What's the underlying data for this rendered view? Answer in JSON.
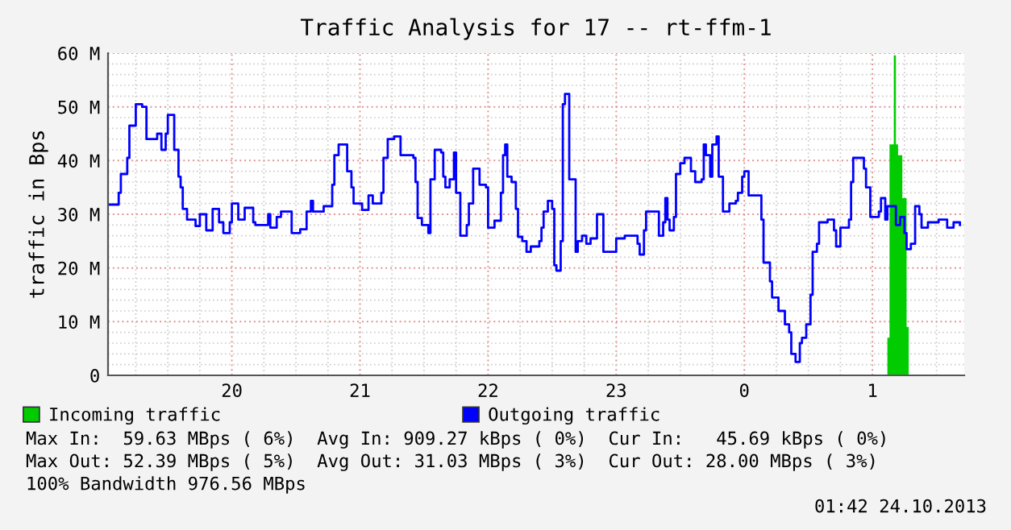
{
  "chart_data": {
    "type": "step",
    "title": "Traffic Analysis for 17 -- rt-ffm-1",
    "ylabel": "traffic in Bps",
    "xlim": [
      "2013-10-23T19:02",
      "2013-10-24T01:43"
    ],
    "xticks": [
      {
        "value": "2013-10-23T20:00",
        "label": "20"
      },
      {
        "value": "2013-10-23T21:00",
        "label": "21"
      },
      {
        "value": "2013-10-23T22:00",
        "label": "22"
      },
      {
        "value": "2013-10-23T23:00",
        "label": "23"
      },
      {
        "value": "2013-10-24T00:00",
        "label": "0"
      },
      {
        "value": "2013-10-24T01:00",
        "label": "1"
      }
    ],
    "ylim": [
      0,
      60
    ],
    "yticks": [
      {
        "value": 0,
        "label": "0"
      },
      {
        "value": 10,
        "label": "10 M"
      },
      {
        "value": 20,
        "label": "20 M"
      },
      {
        "value": 30,
        "label": "30 M"
      },
      {
        "value": 40,
        "label": "40 M"
      },
      {
        "value": 50,
        "label": "50 M"
      },
      {
        "value": 60,
        "label": "60 M"
      }
    ],
    "grid": true,
    "legend": "bottom",
    "series": [
      {
        "name": "Incoming traffic",
        "type": "area",
        "color": "#00cc00",
        "x": [
          "2013-10-23T19:02",
          "2013-10-24T01:06",
          "2013-10-24T01:07",
          "2013-10-24T01:08",
          "2013-10-24T01:10",
          "2013-10-24T01:11",
          "2013-10-24T01:12",
          "2013-10-24T01:14",
          "2013-10-24T01:16",
          "2013-10-24T01:17",
          "2013-10-24T01:41"
        ],
        "values": [
          0,
          0,
          7,
          43,
          59.6,
          43,
          41,
          33,
          9,
          0,
          0
        ]
      },
      {
        "name": "Outgoing traffic",
        "color": "#0000ff",
        "x": [
          "2013-10-23T19:02",
          "2013-10-23T19:07",
          "2013-10-23T19:08",
          "2013-10-23T19:11",
          "2013-10-23T19:12",
          "2013-10-23T19:15",
          "2013-10-23T19:18",
          "2013-10-23T19:20",
          "2013-10-23T19:24",
          "2013-10-23T19:25",
          "2013-10-23T19:27",
          "2013-10-23T19:29",
          "2013-10-23T19:30",
          "2013-10-23T19:33",
          "2013-10-23T19:35",
          "2013-10-23T19:36",
          "2013-10-23T19:37",
          "2013-10-23T19:39",
          "2013-10-23T19:43",
          "2013-10-23T19:45",
          "2013-10-23T19:48",
          "2013-10-23T19:51",
          "2013-10-23T19:54",
          "2013-10-23T19:56",
          "2013-10-23T19:59",
          "2013-10-23T20:00",
          "2013-10-23T20:03",
          "2013-10-23T20:06",
          "2013-10-23T20:10",
          "2013-10-23T20:11",
          "2013-10-23T20:16",
          "2013-10-23T20:17",
          "2013-10-23T20:18",
          "2013-10-23T20:21",
          "2013-10-23T20:23",
          "2013-10-23T20:28",
          "2013-10-23T20:32",
          "2013-10-23T20:35",
          "2013-10-23T20:37",
          "2013-10-23T20:38",
          "2013-10-23T20:43",
          "2013-10-23T20:47",
          "2013-10-23T20:48",
          "2013-10-23T20:50",
          "2013-10-23T20:54",
          "2013-10-23T20:56",
          "2013-10-23T20:57",
          "2013-10-23T21:01",
          "2013-10-23T21:04",
          "2013-10-23T21:06",
          "2013-10-23T21:10",
          "2013-10-23T21:11",
          "2013-10-23T21:13",
          "2013-10-23T21:16",
          "2013-10-23T21:19",
          "2013-10-23T21:25",
          "2013-10-23T21:26",
          "2013-10-23T21:27",
          "2013-10-23T21:29",
          "2013-10-23T21:32",
          "2013-10-23T21:33",
          "2013-10-23T21:35",
          "2013-10-23T21:38",
          "2013-10-23T21:39",
          "2013-10-23T21:40",
          "2013-10-23T21:42",
          "2013-10-23T21:44",
          "2013-10-23T21:45",
          "2013-10-23T21:47",
          "2013-10-23T21:50",
          "2013-10-23T21:51",
          "2013-10-23T21:53",
          "2013-10-23T21:56",
          "2013-10-23T21:59",
          "2013-10-23T22:00",
          "2013-10-23T22:03",
          "2013-10-23T22:06",
          "2013-10-23T22:07",
          "2013-10-23T22:08",
          "2013-10-23T22:09",
          "2013-10-23T22:11",
          "2013-10-23T22:13",
          "2013-10-23T22:14",
          "2013-10-23T22:16",
          "2013-10-23T22:18",
          "2013-10-23T22:20",
          "2013-10-23T22:24",
          "2013-10-23T22:25",
          "2013-10-23T22:26",
          "2013-10-23T22:28",
          "2013-10-23T22:30",
          "2013-10-23T22:31",
          "2013-10-23T22:32",
          "2013-10-23T22:34",
          "2013-10-23T22:35",
          "2013-10-23T22:36",
          "2013-10-23T22:38",
          "2013-10-23T22:41",
          "2013-10-23T22:42",
          "2013-10-23T22:44",
          "2013-10-23T22:46",
          "2013-10-23T22:48",
          "2013-10-23T22:51",
          "2013-10-23T22:54",
          "2013-10-23T23:00",
          "2013-10-23T23:04",
          "2013-10-23T23:10",
          "2013-10-23T23:11",
          "2013-10-23T23:13",
          "2013-10-23T23:14",
          "2013-10-23T23:19",
          "2013-10-23T23:20",
          "2013-10-23T23:22",
          "2013-10-23T23:23",
          "2013-10-23T23:24",
          "2013-10-23T23:25",
          "2013-10-23T23:27",
          "2013-10-23T23:28",
          "2013-10-23T23:30",
          "2013-10-23T23:32",
          "2013-10-23T23:35",
          "2013-10-23T23:37",
          "2013-10-23T23:40",
          "2013-10-23T23:41",
          "2013-10-23T23:42",
          "2013-10-23T23:44",
          "2013-10-23T23:45",
          "2013-10-23T23:47",
          "2013-10-23T23:48",
          "2013-10-23T23:50",
          "2013-10-23T23:53",
          "2013-10-23T23:56",
          "2013-10-23T23:57",
          "2013-10-23T23:59",
          "2013-10-24T00:00",
          "2013-10-24T00:02",
          "2013-10-24T00:06",
          "2013-10-24T00:08",
          "2013-10-24T00:09",
          "2013-10-24T00:12",
          "2013-10-24T00:13",
          "2013-10-24T00:16",
          "2013-10-24T00:19",
          "2013-10-24T00:21",
          "2013-10-24T00:22",
          "2013-10-24T00:24",
          "2013-10-24T00:26",
          "2013-10-24T00:27",
          "2013-10-24T00:29",
          "2013-10-24T00:31",
          "2013-10-24T00:32",
          "2013-10-24T00:34",
          "2013-10-24T00:35",
          "2013-10-24T00:39",
          "2013-10-24T00:42",
          "2013-10-24T00:43",
          "2013-10-24T00:45",
          "2013-10-24T00:49",
          "2013-10-24T00:50",
          "2013-10-24T00:51",
          "2013-10-24T00:56",
          "2013-10-24T00:57",
          "2013-10-24T00:59",
          "2013-10-24T01:03",
          "2013-10-24T01:04",
          "2013-10-24T01:06",
          "2013-10-24T01:07",
          "2013-10-24T01:11",
          "2013-10-24T01:13",
          "2013-10-24T01:15",
          "2013-10-24T01:16",
          "2013-10-24T01:18",
          "2013-10-24T01:20",
          "2013-10-24T01:22",
          "2013-10-24T01:23",
          "2013-10-24T01:26",
          "2013-10-24T01:31",
          "2013-10-24T01:33",
          "2013-10-24T01:35",
          "2013-10-24T01:38",
          "2013-10-24T01:41"
        ],
        "values": [
          31.8,
          34,
          37.5,
          40.5,
          46.5,
          50.5,
          50,
          44,
          44,
          45,
          42,
          45,
          48.5,
          42,
          37,
          35,
          31,
          29,
          27.8,
          30,
          27,
          31,
          28.5,
          26.5,
          28.5,
          32,
          29,
          31.2,
          28.5,
          28,
          28,
          30,
          27.5,
          29.5,
          30.5,
          26.5,
          27.2,
          30.5,
          32.5,
          30.5,
          31.5,
          35.5,
          41,
          43,
          38,
          35,
          32,
          30.8,
          33.5,
          32,
          34,
          40.5,
          44,
          44.5,
          41,
          40.5,
          36,
          29.3,
          28,
          26.5,
          36.5,
          42,
          41.5,
          37,
          35,
          36.5,
          41.5,
          34,
          26,
          28,
          32,
          38.5,
          35.5,
          35,
          27.5,
          28.8,
          34,
          41,
          43,
          37,
          36,
          31,
          25.8,
          25,
          23,
          24,
          25,
          27.5,
          30.5,
          32.5,
          31,
          20.5,
          19.5,
          25,
          50.5,
          52.4,
          36.5,
          23,
          25,
          26,
          24.5,
          25.5,
          30,
          23,
          25.5,
          26,
          24.5,
          22.5,
          27,
          30.5,
          30.5,
          26,
          28.5,
          33,
          29,
          27,
          29.5,
          37.5,
          39.5,
          40.5,
          38,
          36,
          36.5,
          43,
          41,
          37,
          43,
          44.5,
          37,
          30.5,
          32,
          32.5,
          34,
          37,
          38,
          33.5,
          33.5,
          29,
          21,
          17.5,
          14.5,
          12,
          9.5,
          8,
          4,
          2.5,
          6,
          7,
          9.5,
          15,
          23,
          24.5,
          28.5,
          29,
          27,
          24,
          27.5,
          29,
          36,
          40.5,
          38.5,
          35,
          29.5,
          30.5,
          33,
          29,
          31.5,
          28,
          29.5,
          26.5,
          23.5,
          24.5,
          31.5,
          30,
          27.5,
          28.5,
          29,
          29,
          27.5,
          28.5,
          28
        ]
      }
    ],
    "annotations": [
      "Max In:  59.63 MBps ( 6%)  Avg In: 909.27 kBps ( 0%)  Cur In:   45.69 kBps ( 0%)",
      "Max Out: 52.39 MBps ( 5%)  Avg Out: 31.03 MBps ( 3%)  Cur Out: 28.00 MBps ( 3%)",
      "100% Bandwidth 976.56 MBps",
      "01:42 24.10.2013"
    ]
  }
}
